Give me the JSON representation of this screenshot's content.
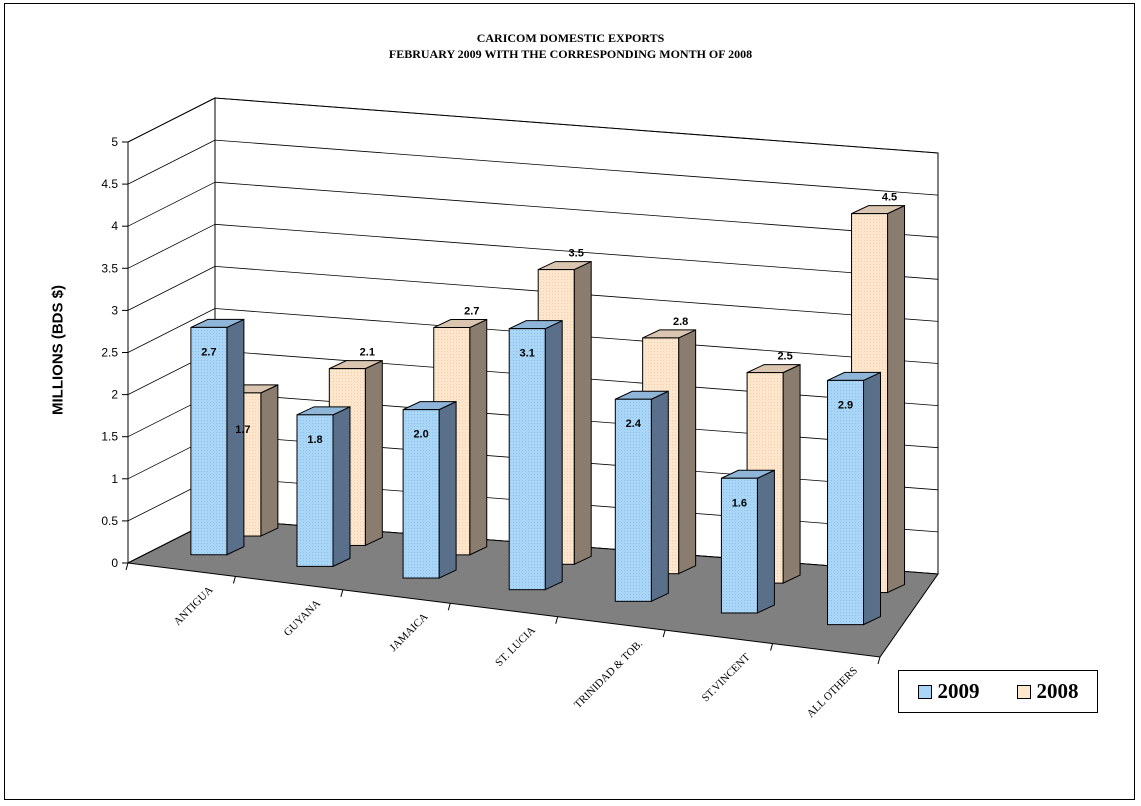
{
  "chart_data": {
    "type": "bar",
    "title": "CARICOM DOMESTIC EXPORTS",
    "subtitle": "FEBRUARY 2009 WITH THE CORRESPONDING MONTH OF 2008",
    "ylabel": "MILLIONS (BDS $)",
    "xlabel": "",
    "ylim": [
      0,
      5
    ],
    "yticks": [
      "0",
      "0.5",
      "1",
      "1.5",
      "2",
      "2.5",
      "3",
      "3.5",
      "4",
      "4.5",
      "5"
    ],
    "categories": [
      "ANTIGUA",
      "GUYANA",
      "JAMAICA",
      "ST. LUCIA",
      "TRINIDAD & TOB.",
      "ST.VINCENT",
      "ALL OTHERS"
    ],
    "series": [
      {
        "name": "2009",
        "values": [
          2.7,
          1.8,
          2.0,
          3.1,
          2.4,
          1.6,
          2.9
        ],
        "labels": [
          "2.7",
          "1.8",
          "2.0",
          "3.1",
          "2.4",
          "1.6",
          "2.9"
        ],
        "color": "#a8d4f4"
      },
      {
        "name": "2008",
        "values": [
          1.7,
          2.1,
          2.7,
          3.5,
          2.8,
          2.5,
          4.5
        ],
        "labels": [
          "1.7",
          "2.1",
          "2.7",
          "3.5",
          "2.8",
          "2.5",
          "4.5"
        ],
        "color": "#fde3c8"
      }
    ],
    "grid": true,
    "legend": "bottom-right",
    "style": "3d-clustered-column"
  }
}
